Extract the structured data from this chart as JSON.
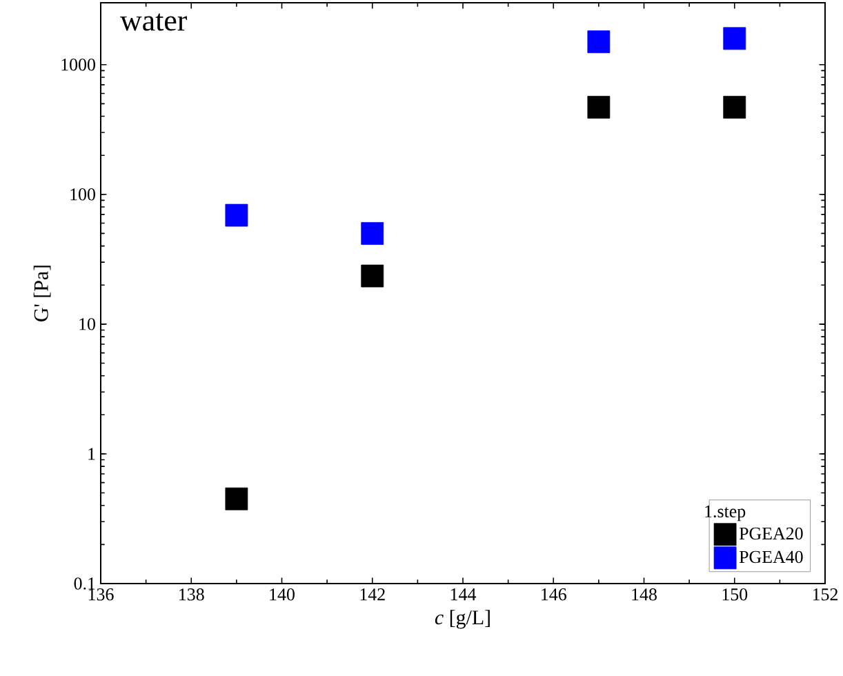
{
  "chart_data": {
    "type": "scatter",
    "xlabel": "*c* [g/L]",
    "ylabel": "G' [Pa]",
    "legend_title": "1.step",
    "annotations": [
      "water"
    ],
    "x": [
      139,
      142,
      147,
      150
    ],
    "series": [
      {
        "name": "PGEA20",
        "color": "#000000",
        "values": [
          0.45,
          23.5,
          470,
          470
        ]
      },
      {
        "name": "PGEA40",
        "color": "#0000ff",
        "values": [
          69,
          50,
          1500,
          1590
        ]
      }
    ],
    "xlim": [
      136,
      152
    ],
    "xticks": [
      136,
      138,
      140,
      142,
      144,
      146,
      148,
      150,
      152
    ],
    "ylim": [
      0.1,
      3000
    ],
    "yticks": [
      0.1,
      1,
      10,
      100,
      1000
    ],
    "log": "y",
    "grid": false,
    "legend": "bottom right",
    "marker": "square"
  }
}
